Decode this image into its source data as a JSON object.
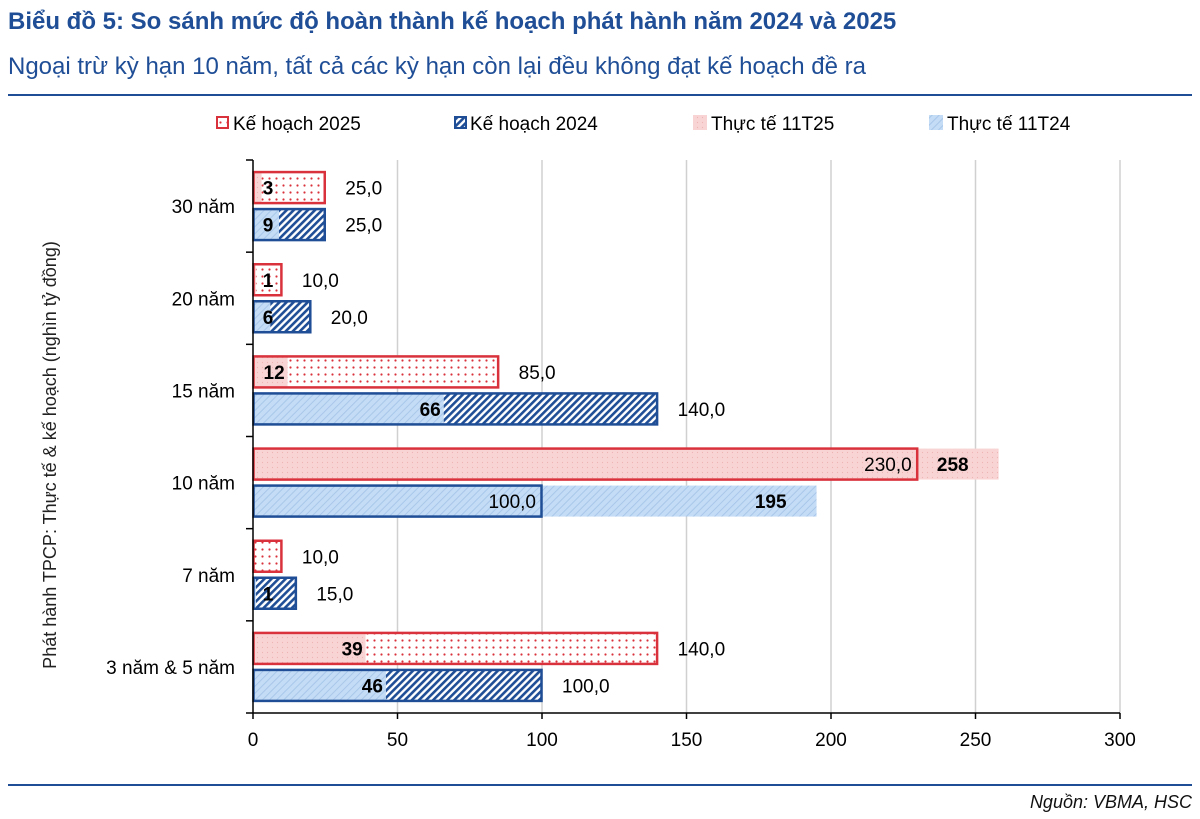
{
  "header": {
    "title": "Biểu đồ 5: So sánh mức độ hoàn thành kế hoạch phát hành năm 2024 và 2025",
    "subtitle": "Ngoại trừ kỳ hạn 10 năm, tất cả các kỳ hạn còn lại đều không đạt kế hoạch đề ra"
  },
  "footer": {
    "source": "Nguồn: VBMA, HSC"
  },
  "colors": {
    "plan2025_border": "#d9323c",
    "plan2025_dots": "#d9323c",
    "plan2024_border": "#1f4e96",
    "plan2024_hatch": "#1f4e96",
    "actual25_fill": "#f9d4d4",
    "actual24_fill": "#c4dcf5",
    "grid": "#d0d0d0",
    "axis": "#000000",
    "text": "#000000"
  },
  "chart_data": {
    "type": "bar",
    "orientation": "horizontal",
    "title": "So sánh mức độ hoàn thành kế hoạch phát hành năm 2024 và 2025",
    "ylabel": "Phát hành TPCP: Thực tế & kế hoạch (nghìn tỷ đồng)",
    "xlabel": "",
    "xlim": [
      0,
      300
    ],
    "xticks": [
      0,
      50,
      100,
      150,
      200,
      250,
      300
    ],
    "grid": true,
    "legend_position": "top",
    "legend": [
      "Kế hoạch 2025",
      "Kế hoạch 2024",
      "Thực tế 11T25",
      "Thực tế 11T24"
    ],
    "categories": [
      "30 năm",
      "20 năm",
      "15 năm",
      "10 năm",
      "7 năm",
      "3 năm & 5 năm"
    ],
    "series": [
      {
        "name": "Kế hoạch 2025",
        "values": [
          25.0,
          10.0,
          85.0,
          230.0,
          10.0,
          140.0
        ],
        "labels": [
          "25,0",
          "10,0",
          "85,0",
          "230,0",
          "10,0",
          "140,0"
        ]
      },
      {
        "name": "Thực tế 11T25",
        "values": [
          3,
          1,
          12,
          258,
          0,
          39
        ],
        "labels": [
          "3",
          "1",
          "12",
          "258",
          "",
          "39"
        ]
      },
      {
        "name": "Kế hoạch 2024",
        "values": [
          25.0,
          20.0,
          140.0,
          100.0,
          15.0,
          100.0
        ],
        "labels": [
          "25,0",
          "20,0",
          "140,0",
          "100,0",
          "15,0",
          "100,0"
        ]
      },
      {
        "name": "Thực tế 11T24",
        "values": [
          9,
          6,
          66,
          195,
          1,
          46
        ],
        "labels": [
          "9",
          "6",
          "66",
          "195",
          "1",
          "46"
        ]
      }
    ]
  }
}
